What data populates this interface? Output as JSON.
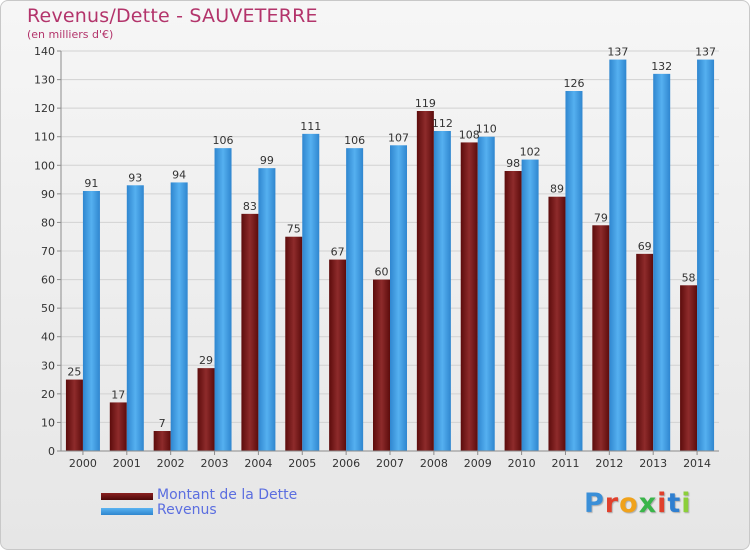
{
  "header": {
    "title": "Revenus/Dette - SAUVETERRE",
    "subtitle": "(en milliers d'€)"
  },
  "chart_data": {
    "type": "bar",
    "title": "Revenus/Dette - SAUVETERRE",
    "subtitle": "(en milliers d'€)",
    "categories": [
      "2000",
      "2001",
      "2002",
      "2003",
      "2004",
      "2005",
      "2006",
      "2007",
      "2008",
      "2009",
      "2010",
      "2011",
      "2012",
      "2013",
      "2014"
    ],
    "series": [
      {
        "name": "Montant de la Dette",
        "color": "#7a1a1a",
        "values": [
          25,
          17,
          7,
          29,
          83,
          75,
          67,
          60,
          119,
          108,
          98,
          89,
          79,
          69,
          58
        ]
      },
      {
        "name": "Revenus",
        "color": "#3d9ae0",
        "values": [
          91,
          93,
          94,
          106,
          99,
          111,
          106,
          107,
          112,
          110,
          102,
          126,
          137,
          132,
          137
        ]
      }
    ],
    "ylim": [
      0,
      140
    ],
    "yticks": [
      0,
      10,
      20,
      30,
      40,
      50,
      60,
      70,
      80,
      90,
      100,
      110,
      120,
      130,
      140
    ],
    "grid": true,
    "legend": "bottom-left"
  },
  "legend": {
    "items": [
      {
        "label": "Montant de la Dette",
        "color": "#6b0f0f"
      },
      {
        "label": "Revenus",
        "color": "#3d9ae0"
      }
    ]
  },
  "logo": {
    "text": "Proxiti"
  }
}
